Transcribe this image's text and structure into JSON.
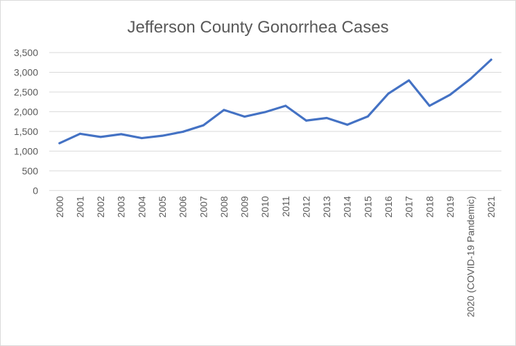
{
  "chart_data": {
    "type": "line",
    "title": "Jefferson County Gonorrhea Cases",
    "xlabel": "",
    "ylabel": "",
    "categories": [
      "2000",
      "2001",
      "2002",
      "2003",
      "2004",
      "2005",
      "2006",
      "2007",
      "2008",
      "2009",
      "2010",
      "2011",
      "2012",
      "2013",
      "2014",
      "2015",
      "2016",
      "2017",
      "2018",
      "2019",
      "2020 (COVID-19 Pandemic)",
      "2021"
    ],
    "values": [
      1200,
      1440,
      1360,
      1430,
      1330,
      1390,
      1490,
      1655,
      2045,
      1875,
      1990,
      2150,
      1775,
      1840,
      1670,
      1880,
      2460,
      2795,
      2150,
      2430,
      2835,
      3320
    ],
    "ylim": [
      0,
      3500
    ],
    "yticks": [
      0,
      500,
      1000,
      1500,
      2000,
      2500,
      3000,
      3500
    ],
    "ytick_labels": [
      "0",
      "500",
      "1,000",
      "1,500",
      "2,000",
      "2,500",
      "3,000",
      "3,500"
    ],
    "grid": true,
    "legend": "none",
    "line_color": "#4472C4"
  }
}
